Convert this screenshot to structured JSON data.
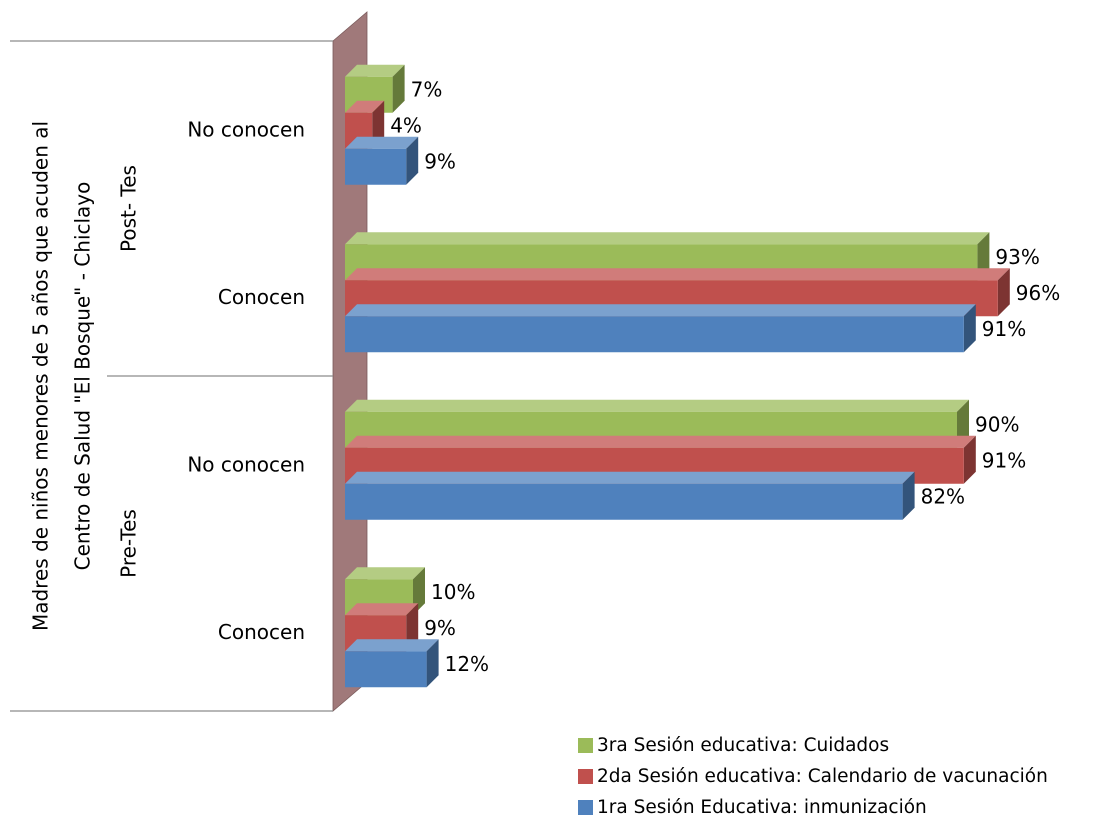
{
  "chart_data": {
    "type": "bar",
    "orientation": "horizontal",
    "style": "3d",
    "ylabel": "Madres de niños menores de 5 años que acuden al Centro de Salud \"El Bosque\" - Chiclayo",
    "ylabel_lines": [
      "Madres de niños menores de 5 años que acuden al",
      "Centro de Salud \"El Bosque\" - Chiclayo"
    ],
    "groups": [
      {
        "name": "Post- Tes",
        "categories": [
          "No conocen",
          "Conocen"
        ]
      },
      {
        "name": "Pre-Tes",
        "categories": [
          "No conocen",
          "Conocen"
        ]
      }
    ],
    "categories": [
      "Post- Tes | No conocen",
      "Post- Tes | Conocen",
      "Pre-Tes | No conocen",
      "Pre-Tes | Conocen"
    ],
    "series": [
      {
        "name": "3ra Sesión educativa: Cuidados",
        "color": "#9BBB59",
        "values": [
          7,
          93,
          90,
          10
        ],
        "labels": [
          "7%",
          "93%",
          "90%",
          "10%"
        ]
      },
      {
        "name": "2da Sesión educativa: Calendario de vacunación",
        "color": "#C0504D",
        "values": [
          4,
          96,
          91,
          9
        ],
        "labels": [
          "4%",
          "96%",
          "91%",
          "9%"
        ]
      },
      {
        "name": "1ra Sesión Educativa: inmunización",
        "color": "#4F81BD",
        "values": [
          9,
          91,
          82,
          12
        ],
        "labels": [
          "9%",
          "91%",
          "82%",
          "12%"
        ]
      }
    ],
    "xlim": [
      0,
      100
    ],
    "legend_position": "bottom-right",
    "grid": false
  }
}
